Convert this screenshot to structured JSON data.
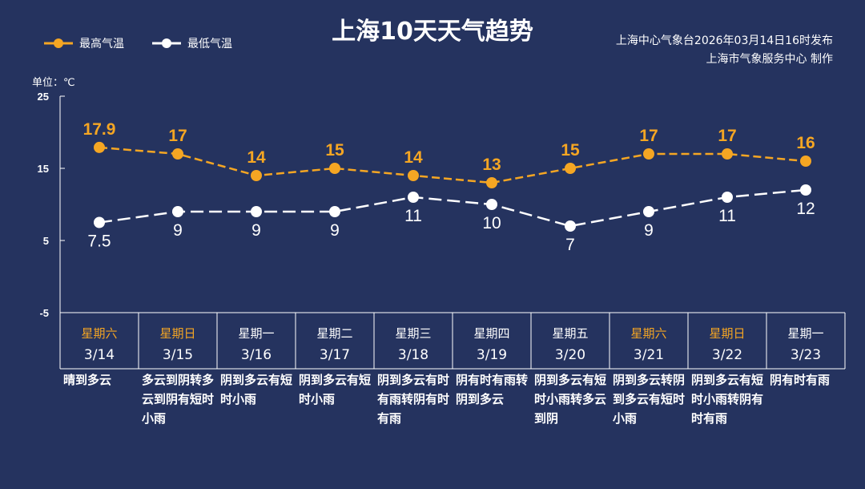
{
  "header": {
    "title": "上海10天天气趋势",
    "credit_line1": "上海中心气象台2026年03月14日16时发布",
    "credit_line2": "上海市气象服务中心  制作",
    "unit": "单位：℃"
  },
  "colors": {
    "background": "#25335f",
    "high": "#f5a623",
    "low": "#ffffff",
    "weekend": "#f5a623"
  },
  "chart_data": {
    "type": "line",
    "title": "上海10天天气趋势",
    "ylim": [
      -5,
      25
    ],
    "yticks": [
      25,
      15,
      5,
      -5
    ],
    "categories": [
      "3/14",
      "3/15",
      "3/16",
      "3/17",
      "3/18",
      "3/19",
      "3/20",
      "3/21",
      "3/22",
      "3/23"
    ],
    "weekdays": [
      "星期六",
      "星期日",
      "星期一",
      "星期二",
      "星期三",
      "星期四",
      "星期五",
      "星期六",
      "星期日",
      "星期一"
    ],
    "weekend": [
      true,
      true,
      false,
      false,
      false,
      false,
      false,
      true,
      true,
      false
    ],
    "descriptions": [
      "晴到多云",
      "多云到阴转多云到阴有短时小雨",
      "阴到多云有短时小雨",
      "阴到多云有短时小雨",
      "阴到多云有时有雨转阴有时有雨",
      "阴有时有雨转阴到多云",
      "阴到多云有短时小雨转多云到阴",
      "阴到多云转阴到多云有短时小雨",
      "阴到多云有短时小雨转阴有时有雨",
      "阴有时有雨"
    ],
    "legend_placement": "top-left",
    "series": [
      {
        "name": "最高气温",
        "values": [
          17.9,
          17,
          14,
          15,
          14,
          13,
          15,
          17,
          17,
          16
        ]
      },
      {
        "name": "最低气温",
        "values": [
          7.5,
          9,
          9,
          9,
          11,
          10,
          7,
          9,
          11,
          12
        ]
      }
    ]
  }
}
